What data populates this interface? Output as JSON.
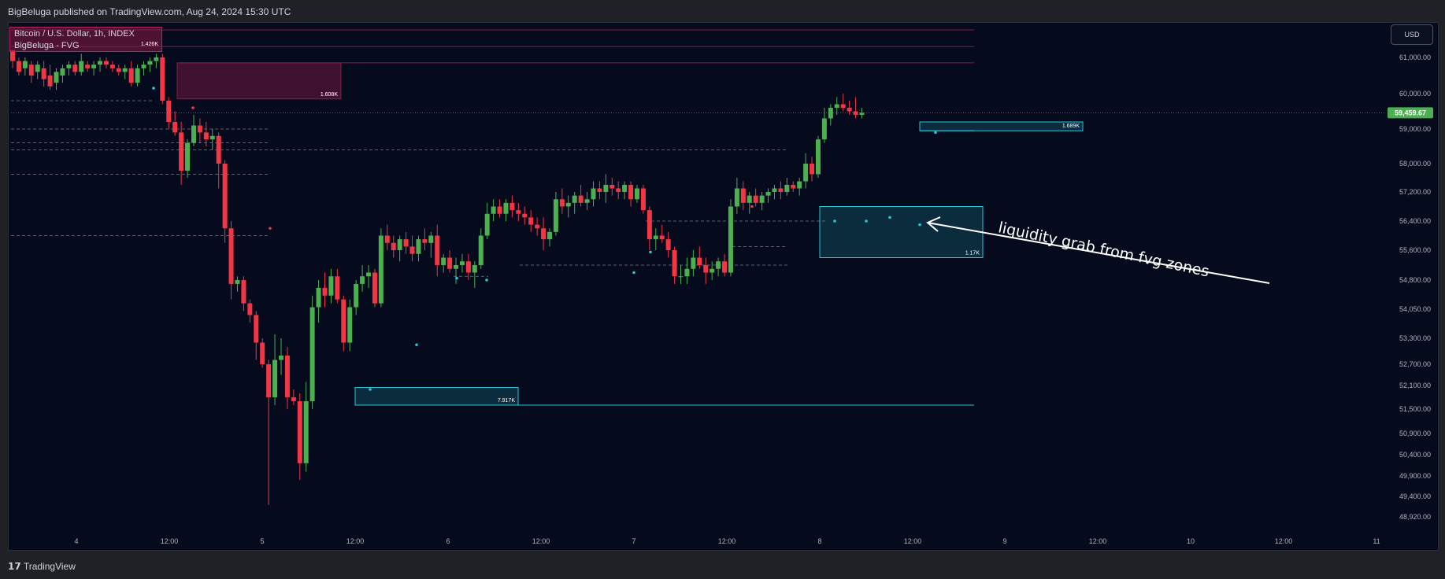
{
  "header": {
    "attribution": "BigBeluga published on TradingView.com, Aug 24, 2024 15:30 UTC"
  },
  "legend": {
    "symbol": "Bitcoin / U.S. Dollar, 1h, INDEX",
    "indicator": "BigBeluga - FVG",
    "label": "1.426K"
  },
  "currency_button": "USD",
  "footer": {
    "brand": "TradingView"
  },
  "annotation": "liquidity grab from fvg zones",
  "colors": {
    "up": "#4caf50",
    "down": "#f23645",
    "bear_zone": "#891b47",
    "bull_zone": "#26c6da",
    "background": "#050a1c",
    "price_tag": "#4caf50"
  },
  "chart_data": {
    "type": "candlestick",
    "title": "Bitcoin / U.S. Dollar, 1h, INDEX",
    "y_ticks": [
      61000,
      60000,
      59000,
      58000,
      57200,
      56400,
      55600,
      54800,
      54050,
      53300,
      52700,
      52100,
      51500,
      50900,
      50400,
      49900,
      49400,
      48920
    ],
    "y_tick_labels": [
      "61,000.00",
      "60,000.00",
      "59,000.00",
      "58,000.00",
      "57,200.00",
      "56,400.00",
      "55,600.00",
      "54,800.00",
      "54,050.00",
      "53,300.00",
      "52,700.00",
      "52,100.00",
      "51,500.00",
      "50,900.00",
      "50,400.00",
      "49,900.00",
      "49,400.00",
      "48,920.00"
    ],
    "x_tick_labels": [
      "4",
      "12:00",
      "5",
      "12:00",
      "6",
      "12:00",
      "7",
      "12:00",
      "8",
      "12:00",
      "9",
      "12:00",
      "10",
      "12:00",
      "11"
    ],
    "last_price": 59459.67,
    "last_price_label": "59,459.67",
    "ohlc": [
      [
        61200,
        61200,
        60700,
        60900
      ],
      [
        60900,
        61000,
        60500,
        60600
      ],
      [
        60700,
        61000,
        60500,
        60900
      ],
      [
        60800,
        60900,
        60300,
        60500
      ],
      [
        60600,
        60900,
        60400,
        60800
      ],
      [
        60700,
        60900,
        60200,
        60400
      ],
      [
        60500,
        60800,
        60100,
        60200
      ],
      [
        60300,
        60700,
        60100,
        60600
      ],
      [
        60500,
        60800,
        60300,
        60700
      ],
      [
        60700,
        60900,
        60500,
        60800
      ],
      [
        60800,
        60900,
        60500,
        60600
      ],
      [
        60600,
        61100,
        60500,
        60900
      ],
      [
        60800,
        60900,
        60600,
        60700
      ],
      [
        60700,
        60900,
        60500,
        60800
      ],
      [
        60800,
        61000,
        60600,
        60900
      ],
      [
        60900,
        61000,
        60700,
        60800
      ],
      [
        60800,
        60900,
        60600,
        60700
      ],
      [
        60700,
        60800,
        60500,
        60600
      ],
      [
        60600,
        60800,
        60400,
        60700
      ],
      [
        60700,
        60900,
        60200,
        60300
      ],
      [
        60300,
        60800,
        60200,
        60700
      ],
      [
        60700,
        60900,
        60500,
        60800
      ],
      [
        60800,
        61000,
        60600,
        60900
      ],
      [
        60900,
        61100,
        60700,
        61000
      ],
      [
        61000,
        61100,
        59700,
        59800
      ],
      [
        59800,
        59900,
        59000,
        59200
      ],
      [
        59200,
        59500,
        58800,
        58900
      ],
      [
        58900,
        59200,
        57400,
        57800
      ],
      [
        57800,
        58700,
        57600,
        58600
      ],
      [
        58600,
        59400,
        58500,
        59100
      ],
      [
        59100,
        59300,
        58600,
        58900
      ],
      [
        58900,
        59200,
        58500,
        58700
      ],
      [
        58700,
        59000,
        58400,
        58800
      ],
      [
        58800,
        58900,
        57300,
        58000
      ],
      [
        58000,
        58100,
        55800,
        56200
      ],
      [
        56200,
        56400,
        54300,
        54700
      ],
      [
        54700,
        54900,
        54500,
        54800
      ],
      [
        54800,
        54900,
        54000,
        54200
      ],
      [
        54200,
        54300,
        53700,
        53900
      ],
      [
        53900,
        54000,
        52800,
        53200
      ],
      [
        53200,
        53300,
        52600,
        52700
      ],
      [
        52700,
        52800,
        49200,
        51800
      ],
      [
        51800,
        53400,
        51600,
        52800
      ],
      [
        52800,
        53300,
        52400,
        52900
      ],
      [
        52900,
        53100,
        51500,
        51800
      ],
      [
        51800,
        52000,
        51600,
        51700
      ],
      [
        51700,
        51900,
        49800,
        50200
      ],
      [
        50200,
        52200,
        50000,
        51700
      ],
      [
        51700,
        54400,
        51500,
        54100
      ],
      [
        54100,
        54800,
        53700,
        54600
      ],
      [
        54600,
        55000,
        54100,
        54400
      ],
      [
        54400,
        55100,
        54200,
        54900
      ],
      [
        54900,
        55100,
        54200,
        54300
      ],
      [
        54300,
        54400,
        53000,
        53200
      ],
      [
        53200,
        54300,
        53000,
        54100
      ],
      [
        54100,
        54800,
        53900,
        54700
      ],
      [
        54700,
        55200,
        54500,
        54900
      ],
      [
        54900,
        55200,
        54600,
        55000
      ],
      [
        55000,
        55100,
        54100,
        54200
      ],
      [
        54200,
        56200,
        54100,
        56000
      ],
      [
        56000,
        56300,
        55600,
        55800
      ],
      [
        55800,
        56000,
        55400,
        55600
      ],
      [
        55600,
        56000,
        55300,
        55900
      ],
      [
        55900,
        56100,
        55500,
        55700
      ],
      [
        55700,
        56000,
        55300,
        55500
      ],
      [
        55500,
        56000,
        55300,
        55900
      ],
      [
        55900,
        56200,
        55600,
        55800
      ],
      [
        55800,
        56100,
        55400,
        56000
      ],
      [
        56000,
        56300,
        54900,
        55200
      ],
      [
        55200,
        55500,
        55000,
        55400
      ],
      [
        55400,
        55600,
        55000,
        55100
      ],
      [
        55100,
        55400,
        54700,
        55200
      ],
      [
        55200,
        55500,
        55000,
        55300
      ],
      [
        55300,
        55500,
        54800,
        55000
      ],
      [
        55000,
        55300,
        54600,
        55200
      ],
      [
        55200,
        56200,
        55100,
        56000
      ],
      [
        56000,
        56900,
        55900,
        56600
      ],
      [
        56600,
        57000,
        56400,
        56800
      ],
      [
        56800,
        57000,
        56500,
        56600
      ],
      [
        56600,
        57000,
        56400,
        56900
      ],
      [
        56900,
        57100,
        56500,
        56700
      ],
      [
        56700,
        56900,
        56400,
        56600
      ],
      [
        56600,
        56800,
        56300,
        56500
      ],
      [
        56500,
        56700,
        56100,
        56300
      ],
      [
        56300,
        56500,
        56000,
        56200
      ],
      [
        56200,
        56500,
        55600,
        55900
      ],
      [
        55900,
        56200,
        55700,
        56100
      ],
      [
        56100,
        57200,
        56000,
        57000
      ],
      [
        57000,
        57300,
        56600,
        56800
      ],
      [
        56800,
        57100,
        56500,
        56900
      ],
      [
        56900,
        57200,
        56600,
        57100
      ],
      [
        57100,
        57400,
        56800,
        56900
      ],
      [
        56900,
        57200,
        56700,
        57000
      ],
      [
        57000,
        57500,
        56800,
        57300
      ],
      [
        57300,
        57500,
        57000,
        57200
      ],
      [
        57200,
        57700,
        56900,
        57400
      ],
      [
        57400,
        57600,
        57100,
        57300
      ],
      [
        57300,
        57500,
        57000,
        57200
      ],
      [
        57200,
        57500,
        57000,
        57400
      ],
      [
        57400,
        57500,
        56800,
        57000
      ],
      [
        57000,
        57400,
        56900,
        57300
      ],
      [
        57300,
        57400,
        56600,
        56700
      ],
      [
        56700,
        56800,
        55600,
        55900
      ],
      [
        55900,
        56200,
        55600,
        56000
      ],
      [
        56000,
        56300,
        55800,
        55900
      ],
      [
        55900,
        56100,
        55400,
        55600
      ],
      [
        55600,
        55700,
        54700,
        54900
      ],
      [
        54900,
        55200,
        54700,
        54900
      ],
      [
        54900,
        55400,
        54700,
        55100
      ],
      [
        55100,
        55600,
        54900,
        55400
      ],
      [
        55400,
        55700,
        55100,
        55200
      ],
      [
        55200,
        55400,
        54700,
        55000
      ],
      [
        55000,
        55300,
        54800,
        55100
      ],
      [
        55100,
        55400,
        54900,
        55300
      ],
      [
        55300,
        55500,
        54900,
        55000
      ],
      [
        55000,
        57000,
        54900,
        56800
      ],
      [
        56800,
        57600,
        56600,
        57300
      ],
      [
        57300,
        57500,
        56700,
        56900
      ],
      [
        56900,
        57200,
        56600,
        57100
      ],
      [
        57100,
        57300,
        56800,
        56900
      ],
      [
        56900,
        57200,
        56700,
        57100
      ],
      [
        57100,
        57300,
        56900,
        57200
      ],
      [
        57200,
        57400,
        57000,
        57300
      ],
      [
        57300,
        57500,
        57000,
        57200
      ],
      [
        57200,
        57600,
        57100,
        57400
      ],
      [
        57400,
        57500,
        57200,
        57300
      ],
      [
        57300,
        57600,
        57100,
        57500
      ],
      [
        57500,
        58300,
        57300,
        58000
      ],
      [
        58000,
        58200,
        57500,
        57700
      ],
      [
        57700,
        58800,
        57600,
        58700
      ],
      [
        58700,
        59600,
        58600,
        59300
      ],
      [
        59300,
        59700,
        59100,
        59600
      ],
      [
        59600,
        59900,
        59400,
        59700
      ],
      [
        59700,
        60000,
        59500,
        59600
      ],
      [
        59600,
        59800,
        59400,
        59500
      ],
      [
        59500,
        59900,
        59300,
        59400
      ],
      [
        59400,
        59600,
        59300,
        59460
      ]
    ],
    "fvg_zones": [
      {
        "type": "bearish",
        "top": 60850,
        "bottom": 59850,
        "label": "1.608K"
      },
      {
        "type": "bearish",
        "top": 61300,
        "bottom": 61200,
        "label": "1.426K"
      },
      {
        "type": "bullish",
        "top": 59200,
        "bottom": 58950,
        "label": "1.689K"
      },
      {
        "type": "bullish",
        "top": 56800,
        "bottom": 55400,
        "label": "1.17K"
      },
      {
        "type": "bullish",
        "top": 52050,
        "bottom": 51600,
        "label": "7.917K"
      }
    ]
  }
}
